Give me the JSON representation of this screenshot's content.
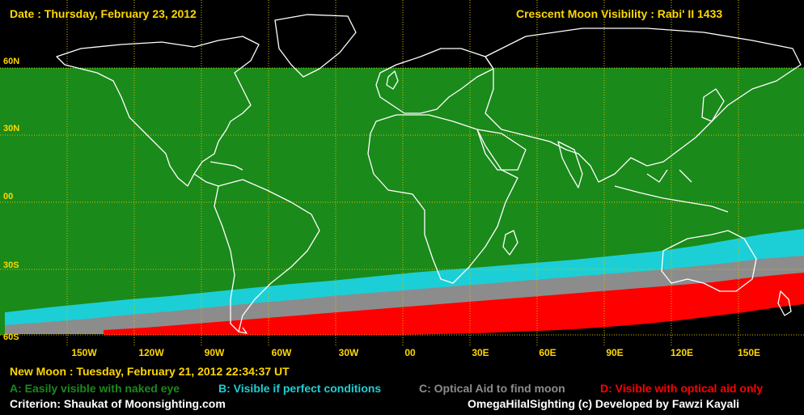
{
  "header": {
    "date": "Date : Thursday, February 23, 2012",
    "title": "Crescent Moon Visibility : Rabi' II  1433"
  },
  "lat_labels": [
    "60N",
    "30N",
    "00",
    "30S",
    "60S"
  ],
  "lon_labels": [
    "150W",
    "120W",
    "90W",
    "60W",
    "30W",
    "00",
    "30E",
    "60E",
    "90E",
    "120E",
    "150E"
  ],
  "legend": {
    "a": "A: Easily visible with naked eye",
    "b": "B: Visible if perfect conditions",
    "c": "C: Optical Aid to find moon",
    "d": "D: Visible with optical aid only"
  },
  "footer": {
    "new_moon": "New Moon : Tuesday, February 21, 2012  22:34:37  UT",
    "criterion": "Criterion: Shaukat of Moonsighting.com",
    "credit": "OmegaHilalSighting  (c)  Developed by Fawzi Kayali"
  },
  "colors": {
    "zone_a": "#1a8a1a",
    "zone_b": "#1ccfd6",
    "zone_c": "#8c8c8c",
    "zone_d": "#ff0000",
    "grid": "#d8c000",
    "coast": "#ffffff",
    "label": "#ffd700"
  }
}
